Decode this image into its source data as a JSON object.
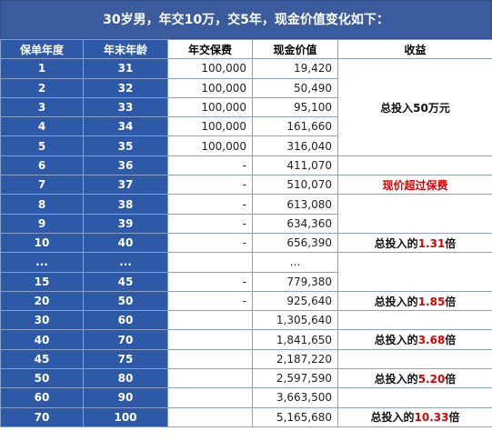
{
  "title": "30岁男，年交10万，交5年，现金价值变化如下：",
  "headers": [
    "保单年度",
    "年末年龄",
    "年交保费",
    "现金价值",
    "收益"
  ],
  "rows": [
    {
      "year": "1",
      "age": "31",
      "premium": "100,000",
      "cash": "19,420"
    },
    {
      "year": "2",
      "age": "32",
      "premium": "100,000",
      "cash": "50,490"
    },
    {
      "year": "3",
      "age": "33",
      "premium": "100,000",
      "cash": "95,100"
    },
    {
      "year": "4",
      "age": "34",
      "premium": "100,000",
      "cash": "161,660"
    },
    {
      "year": "5",
      "age": "35",
      "premium": "100,000",
      "cash": "316,040"
    },
    {
      "year": "6",
      "age": "36",
      "premium": "-",
      "cash": "411,070"
    },
    {
      "year": "7",
      "age": "37",
      "premium": "-",
      "cash": "510,070"
    },
    {
      "year": "8",
      "age": "38",
      "premium": "-",
      "cash": "613,080"
    },
    {
      "year": "9",
      "age": "39",
      "premium": "-",
      "cash": "634,360"
    },
    {
      "year": "10",
      "age": "40",
      "premium": "-",
      "cash": "656,390"
    },
    {
      "year": "...",
      "age": "...",
      "premium": "",
      "cash": "..."
    },
    {
      "year": "15",
      "age": "45",
      "premium": "-",
      "cash": "779,380"
    },
    {
      "year": "20",
      "age": "50",
      "premium": "-",
      "cash": "925,640"
    },
    {
      "year": "30",
      "age": "60",
      "premium": "",
      "cash": "1,305,640"
    },
    {
      "year": "40",
      "age": "70",
      "premium": "",
      "cash": "1,841,650"
    },
    {
      "year": "45",
      "age": "75",
      "premium": "",
      "cash": "2,187,220"
    },
    {
      "year": "50",
      "age": "80",
      "premium": "",
      "cash": "2,597,590"
    },
    {
      "year": "60",
      "age": "90",
      "premium": "",
      "cash": "3,663,500"
    },
    {
      "year": "70",
      "age": "100",
      "premium": "",
      "cash": "5,165,680"
    }
  ],
  "notes": {
    "total_invest": "总投入50万元",
    "exceed": "现价超过保费",
    "prefix": "总投入的",
    "suffix": "倍",
    "m1": "1.31",
    "m2": "1.85",
    "m3": "3.68",
    "m4": "5.20",
    "m5": "10.33"
  }
}
